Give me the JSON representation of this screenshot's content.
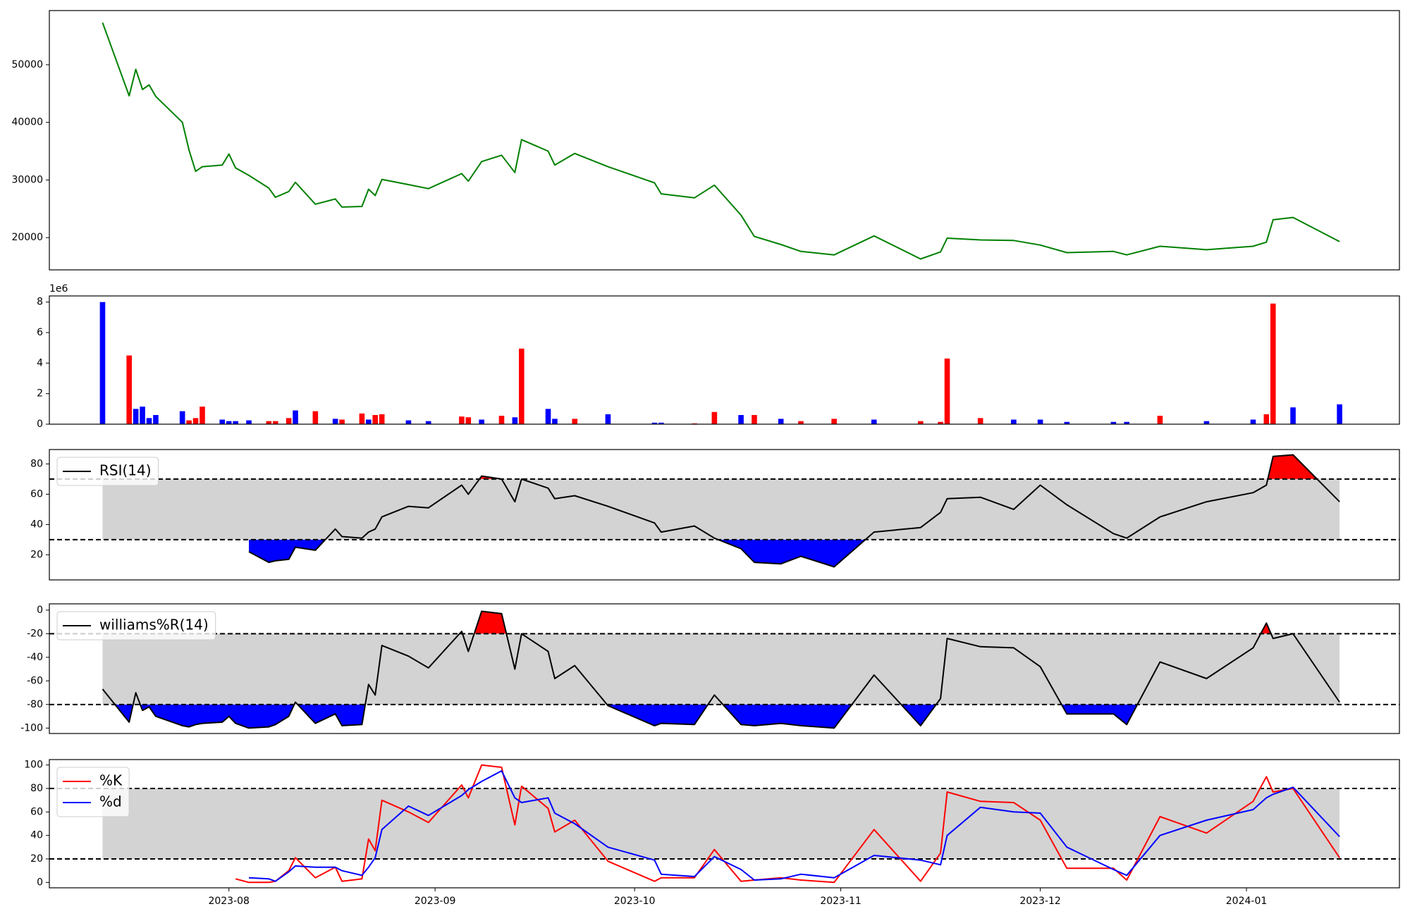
{
  "chart_data": [
    {
      "type": "line",
      "series": [
        {
          "color": "green",
          "values": [
            57300,
            44600,
            49200,
            45700,
            46500,
            44500,
            40000,
            35200,
            31500,
            32300,
            32600,
            34500,
            32100,
            30800,
            28600,
            27000,
            28000,
            29600,
            25800,
            26700,
            25300,
            25400,
            28400,
            27300,
            30100,
            29200,
            28500,
            31100,
            29800,
            33200,
            34300,
            31300,
            37000,
            35000,
            32600,
            34600,
            32300,
            29500,
            27600,
            26900,
            29100,
            23900,
            20200,
            18800,
            17600,
            17000,
            20300,
            16300,
            17500,
            19900,
            19600,
            19500,
            18700,
            17400,
            17600,
            17000,
            18500,
            17900,
            18500,
            19200,
            23100,
            23500,
            19300
          ]
        }
      ],
      "ylim": [
        14400,
        59400
      ],
      "yticks": [
        20000,
        30000,
        40000,
        50000
      ]
    },
    {
      "type": "bar",
      "y_offset_label": "1e6",
      "values": [
        8000000,
        4500000,
        1000000,
        1150000,
        400000,
        600000,
        850000,
        250000,
        400000,
        1150000,
        300000,
        200000,
        200000,
        250000,
        200000,
        200000,
        400000,
        900000,
        850000,
        350000,
        300000,
        700000,
        300000,
        600000,
        650000,
        250000,
        200000,
        500000,
        450000,
        300000,
        550000,
        450000,
        4950000,
        1000000,
        350000,
        350000,
        650000,
        100000,
        100000,
        50000,
        800000,
        600000,
        600000,
        350000,
        200000,
        350000,
        300000,
        200000,
        150000,
        4300000,
        400000,
        300000,
        300000,
        150000,
        150000,
        150000,
        550000,
        200000,
        300000,
        650000,
        7900000,
        1100000,
        1300000
      ],
      "colors": [
        "blue",
        "red",
        "blue",
        "blue",
        "blue",
        "blue",
        "blue",
        "red",
        "red",
        "red",
        "blue",
        "blue",
        "blue",
        "blue",
        "red",
        "red",
        "red",
        "blue",
        "red",
        "blue",
        "red",
        "red",
        "blue",
        "red",
        "red",
        "blue",
        "blue",
        "red",
        "red",
        "blue",
        "red",
        "blue",
        "red",
        "blue",
        "blue",
        "red",
        "blue",
        "blue",
        "blue",
        "red",
        "red",
        "blue",
        "red",
        "blue",
        "red",
        "red",
        "blue",
        "red",
        "red",
        "red",
        "red",
        "blue",
        "blue",
        "blue",
        "blue",
        "blue",
        "red",
        "blue",
        "blue",
        "red",
        "red",
        "blue",
        "blue"
      ],
      "ylim": [
        0,
        8400000
      ],
      "yticks": [
        0,
        {
          "value": 2000000,
          "label": "2"
        },
        {
          "value": 4000000,
          "label": "4"
        },
        {
          "value": 6000000,
          "label": "6"
        },
        {
          "value": 8000000,
          "label": "8"
        }
      ]
    },
    {
      "type": "oscillator",
      "series": [
        {
          "name": "RSI(14)",
          "color": "black",
          "values": [
            null,
            null,
            null,
            null,
            null,
            null,
            null,
            null,
            null,
            null,
            null,
            null,
            null,
            22,
            15,
            16,
            17,
            25,
            23,
            37,
            32,
            31,
            35,
            37,
            45,
            52,
            51,
            66,
            60,
            72,
            70,
            55,
            70,
            64,
            57,
            59,
            52,
            41,
            35,
            39,
            31,
            24,
            15,
            14,
            19,
            12,
            35,
            38,
            48,
            57,
            58,
            50,
            66,
            53,
            34,
            31,
            45,
            55,
            61,
            66,
            85,
            86,
            55
          ]
        }
      ],
      "bands": [
        30,
        70
      ],
      "band_color": "lightgray",
      "high_color": "red",
      "low_color": "blue",
      "ylim": [
        3.4,
        89.5
      ],
      "yticks": [
        20,
        40,
        60,
        80
      ],
      "legend": "upper left"
    },
    {
      "type": "oscillator",
      "series": [
        {
          "name": "williams%R(14)",
          "color": "black",
          "values": [
            -67,
            -95,
            -70,
            -85,
            -82,
            -90,
            -98,
            -99,
            -97,
            -96,
            -95,
            -90,
            -96,
            -100,
            -99,
            -97,
            -90,
            -78,
            -96,
            -88,
            -98,
            -97,
            -63,
            -72,
            -30,
            -39,
            -49,
            -18,
            -35,
            -1,
            -3,
            -50,
            -20,
            -35,
            -58,
            -47,
            -81,
            -98,
            -96,
            -97,
            -72,
            -97,
            -98,
            -96,
            -98,
            -100,
            -55,
            -98,
            -75,
            -24,
            -31,
            -32,
            -48,
            -88,
            -88,
            -97,
            -44,
            -58,
            -32,
            -11,
            -24,
            -20,
            -78
          ]
        }
      ],
      "bands": [
        -80,
        -20
      ],
      "band_color": "lightgray",
      "high_color": "red",
      "low_color": "blue",
      "ylim": [
        -104.6,
        5.3
      ],
      "yticks": [
        -100,
        -80,
        -60,
        -40,
        -20,
        0
      ],
      "legend": "upper left"
    },
    {
      "type": "oscillator",
      "series": [
        {
          "name": "%K",
          "color": "red",
          "values": [
            null,
            null,
            null,
            null,
            null,
            null,
            null,
            null,
            null,
            null,
            null,
            null,
            3,
            0,
            0,
            1,
            10,
            21,
            4,
            13,
            1,
            3,
            37,
            27,
            70,
            60,
            51,
            83,
            72,
            100,
            98,
            49,
            82,
            63,
            43,
            53,
            18,
            1,
            4,
            4,
            28,
            1,
            2,
            4,
            2,
            0,
            45,
            1,
            25,
            77,
            69,
            68,
            53,
            12,
            12,
            2,
            56,
            42,
            69,
            90,
            77,
            80,
            21
          ]
        },
        {
          "name": "%d",
          "color": "blue",
          "values": [
            null,
            null,
            null,
            null,
            null,
            null,
            null,
            null,
            null,
            null,
            null,
            null,
            null,
            4,
            3,
            1,
            9,
            14,
            13,
            13,
            10,
            6,
            13,
            21,
            45,
            65,
            57,
            74,
            79,
            86,
            95,
            72,
            68,
            72,
            59,
            50,
            30,
            19,
            7,
            5,
            22,
            11,
            2,
            3,
            7,
            4,
            23,
            19,
            15,
            40,
            64,
            60,
            59,
            30,
            11,
            6,
            40,
            53,
            62,
            72,
            75,
            81,
            39
          ]
        }
      ],
      "bands": [
        20,
        80
      ],
      "band_color": "lightgray",
      "ylim": [
        -4.6,
        104.6
      ],
      "yticks": [
        0,
        20,
        40,
        60,
        80,
        100
      ],
      "legend": "upper left",
      "x": [
        "2023-07-13",
        "2023-07-17",
        "2023-07-18",
        "2023-07-19",
        "2023-07-20",
        "2023-07-21",
        "2023-07-25",
        "2023-07-26",
        "2023-07-27",
        "2023-07-28",
        "2023-07-31",
        "2023-08-01",
        "2023-08-02",
        "2023-08-04",
        "2023-08-07",
        "2023-08-08",
        "2023-08-10",
        "2023-08-11",
        "2023-08-14",
        "2023-08-17",
        "2023-08-18",
        "2023-08-21",
        "2023-08-22",
        "2023-08-23",
        "2023-08-24",
        "2023-08-28",
        "2023-08-31",
        "2023-09-05",
        "2023-09-06",
        "2023-09-08",
        "2023-09-11",
        "2023-09-13",
        "2023-09-14",
        "2023-09-18",
        "2023-09-19",
        "2023-09-22",
        "2023-09-27",
        "2023-10-04",
        "2023-10-05",
        "2023-10-10",
        "2023-10-13",
        "2023-10-17",
        "2023-10-19",
        "2023-10-23",
        "2023-10-26",
        "2023-10-31",
        "2023-11-06",
        "2023-11-13",
        "2023-11-16",
        "2023-11-17",
        "2023-11-22",
        "2023-11-27",
        "2023-12-01",
        "2023-12-05",
        "2023-12-12",
        "2023-12-14",
        "2023-12-19",
        "2023-12-26",
        "2024-01-02",
        "2024-01-04",
        "2024-01-05",
        "2024-01-08",
        "2024-01-15"
      ],
      "xlim": [
        "2023-07-05",
        "2024-01-24"
      ],
      "xticks": [
        {
          "value": "2023-08-01",
          "label": "2023-08"
        },
        {
          "value": "2023-09-01",
          "label": "2023-09"
        },
        {
          "value": "2023-10-01",
          "label": "2023-10"
        },
        {
          "value": "2023-11-01",
          "label": "2023-11"
        },
        {
          "value": "2023-12-01",
          "label": "2023-12"
        },
        {
          "value": "2024-01-01",
          "label": "2024-01"
        }
      ]
    }
  ]
}
